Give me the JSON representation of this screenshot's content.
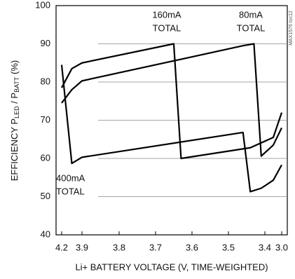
{
  "chart_data": {
    "type": "line",
    "ylabel": [
      "EFFICIENCY P",
      "LED",
      " / P",
      "BATT",
      " (%)"
    ],
    "xlabel": "Li+ BATTERY VOLTAGE (V, TIME-WEIGHTED)",
    "side_note": "MAX1576 toc12",
    "ylim": [
      40,
      100
    ],
    "yticks": [
      40,
      50,
      60,
      70,
      80,
      90,
      100
    ],
    "xlim": [
      4.2,
      3.0
    ],
    "xticks": [
      4.2,
      3.9,
      3.8,
      3.7,
      3.6,
      3.5,
      3.4,
      {
        "value": 3.0,
        "label": "3.0"
      }
    ],
    "grid": true,
    "annotations": [
      {
        "lines": [
          "160mA",
          "TOTAL"
        ]
      },
      {
        "lines": [
          "80mA",
          "TOTAL"
        ]
      },
      {
        "lines": [
          "400mA",
          "TOTAL"
        ]
      }
    ],
    "series": [
      {
        "color": "#000000",
        "x": [
          4.2,
          4.05,
          3.9,
          3.65,
          3.63,
          3.44,
          3.2,
          3.0
        ],
        "values": [
          78.5,
          83.5,
          85,
          90,
          60,
          62.8,
          65.5,
          72
        ]
      },
      {
        "color": "#000000",
        "x": [
          4.2,
          4.05,
          3.9,
          3.46,
          3.43,
          3.41,
          3.2,
          3.0
        ],
        "values": [
          74.5,
          78,
          80.3,
          89.5,
          90,
          60.6,
          63.5,
          68
        ]
      },
      {
        "color": "#000000",
        "x": [
          4.2,
          4.05,
          3.9,
          3.46,
          3.44,
          3.41,
          3.2,
          3.0
        ],
        "values": [
          84.5,
          58.7,
          60.3,
          66.8,
          51.3,
          52.2,
          54.3,
          58.3
        ]
      }
    ]
  }
}
